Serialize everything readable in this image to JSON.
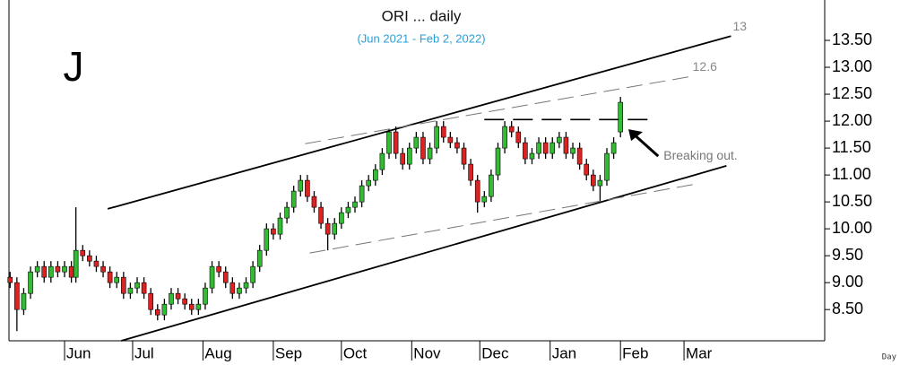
{
  "chart_data": {
    "type": "candlestick",
    "title": "ORI ... daily",
    "subtitle": "(Jun 2021 - Feb 2, 2022)",
    "panel_label": "J",
    "x_unit_label": "Day",
    "up_color": "#33bb33",
    "down_color": "#dd2222",
    "x": [
      -24,
      -21,
      -18,
      -15,
      -12,
      -9,
      -6,
      -3,
      0,
      3,
      5,
      8,
      11,
      14,
      17,
      20,
      23,
      26,
      29,
      32,
      35,
      38,
      41,
      44,
      47,
      50,
      53,
      56,
      59,
      62,
      65,
      68,
      71,
      74,
      77,
      80,
      83,
      86,
      89,
      92,
      95,
      98,
      101,
      104,
      107,
      110,
      113,
      116,
      119,
      122,
      125,
      128,
      131,
      134,
      137,
      140,
      143,
      146,
      149,
      152,
      155,
      158,
      161,
      164,
      167,
      170,
      173,
      176,
      179,
      182,
      185,
      188,
      191,
      194,
      197,
      200,
      203,
      206,
      209,
      212,
      215,
      218,
      221,
      224,
      227,
      230,
      233,
      236,
      239,
      242,
      245
    ],
    "open": [
      9.1,
      9.0,
      8.5,
      8.8,
      9.2,
      9.3,
      9.1,
      9.3,
      9.2,
      9.3,
      9.1,
      9.6,
      9.5,
      9.4,
      9.3,
      9.2,
      9.0,
      9.1,
      8.8,
      8.9,
      9.0,
      8.8,
      8.5,
      8.4,
      8.6,
      8.8,
      8.7,
      8.6,
      8.5,
      8.6,
      8.9,
      9.3,
      9.2,
      9.0,
      8.8,
      8.9,
      9.0,
      9.3,
      9.6,
      10.0,
      9.9,
      10.2,
      10.4,
      10.7,
      10.9,
      10.6,
      10.4,
      10.1,
      9.9,
      10.1,
      10.3,
      10.4,
      10.5,
      10.8,
      10.9,
      11.1,
      11.4,
      11.8,
      11.4,
      11.2,
      11.5,
      11.7,
      11.3,
      11.5,
      11.9,
      11.7,
      11.6,
      11.5,
      11.2,
      10.9,
      10.5,
      10.6,
      11.0,
      11.5,
      11.9,
      11.8,
      11.6,
      11.3,
      11.4,
      11.6,
      11.4,
      11.6,
      11.7,
      11.4,
      11.5,
      11.2,
      11.0,
      10.8,
      10.9,
      11.4,
      11.8
    ],
    "high": [
      9.2,
      9.1,
      8.9,
      9.3,
      9.4,
      9.4,
      9.4,
      9.4,
      9.4,
      9.4,
      10.4,
      9.7,
      9.6,
      9.5,
      9.4,
      9.3,
      9.2,
      9.2,
      9.0,
      9.1,
      9.1,
      8.9,
      8.6,
      8.7,
      8.9,
      8.9,
      8.8,
      8.7,
      8.7,
      9.0,
      9.4,
      9.4,
      9.3,
      9.1,
      9.0,
      9.1,
      9.4,
      9.7,
      10.1,
      10.1,
      10.3,
      10.5,
      10.8,
      11.0,
      11.0,
      10.7,
      10.5,
      10.2,
      10.2,
      10.4,
      10.5,
      10.6,
      10.9,
      11.0,
      11.2,
      11.5,
      11.85,
      11.9,
      11.5,
      11.6,
      11.8,
      11.8,
      11.6,
      12.0,
      12.0,
      11.8,
      11.7,
      11.6,
      11.3,
      11.0,
      10.7,
      11.1,
      11.6,
      12.0,
      12.0,
      11.9,
      11.7,
      11.5,
      11.7,
      11.7,
      11.7,
      11.8,
      11.8,
      11.6,
      11.6,
      11.3,
      11.1,
      11.0,
      11.5,
      11.7,
      12.45
    ],
    "low": [
      8.9,
      8.1,
      8.4,
      8.7,
      9.1,
      9.0,
      9.0,
      9.1,
      9.1,
      9.0,
      9.0,
      9.4,
      9.3,
      9.2,
      9.1,
      8.9,
      8.9,
      8.7,
      8.7,
      8.8,
      8.7,
      8.4,
      8.3,
      8.3,
      8.5,
      8.6,
      8.5,
      8.4,
      8.4,
      8.5,
      8.8,
      9.1,
      8.9,
      8.7,
      8.7,
      8.8,
      8.9,
      9.2,
      9.5,
      9.8,
      9.8,
      10.1,
      10.3,
      10.6,
      10.5,
      10.3,
      10.0,
      9.6,
      9.8,
      10.0,
      10.2,
      10.3,
      10.4,
      10.7,
      10.8,
      11.0,
      11.3,
      11.3,
      11.1,
      11.1,
      11.4,
      11.2,
      11.2,
      11.4,
      11.6,
      11.5,
      11.4,
      11.1,
      10.8,
      10.3,
      10.4,
      10.5,
      10.9,
      11.4,
      11.7,
      11.5,
      11.2,
      11.2,
      11.3,
      11.3,
      11.3,
      11.5,
      11.3,
      11.3,
      11.1,
      10.9,
      10.7,
      10.5,
      10.8,
      11.3,
      11.7
    ],
    "close": [
      9.0,
      8.5,
      8.8,
      9.2,
      9.3,
      9.1,
      9.3,
      9.2,
      9.3,
      9.1,
      9.6,
      9.5,
      9.4,
      9.3,
      9.2,
      9.0,
      9.1,
      8.8,
      8.9,
      9.0,
      8.8,
      8.5,
      8.4,
      8.6,
      8.8,
      8.7,
      8.6,
      8.5,
      8.6,
      8.9,
      9.3,
      9.2,
      9.0,
      8.8,
      8.9,
      9.0,
      9.3,
      9.6,
      10.0,
      9.9,
      10.2,
      10.4,
      10.7,
      10.9,
      10.6,
      10.4,
      10.1,
      9.9,
      10.1,
      10.3,
      10.4,
      10.5,
      10.8,
      10.9,
      11.1,
      11.4,
      11.8,
      11.4,
      11.2,
      11.5,
      11.7,
      11.3,
      11.5,
      11.9,
      11.7,
      11.6,
      11.5,
      11.2,
      10.9,
      10.5,
      10.6,
      11.0,
      11.5,
      11.9,
      11.8,
      11.6,
      11.3,
      11.4,
      11.6,
      11.4,
      11.6,
      11.7,
      11.4,
      11.5,
      11.2,
      11.0,
      10.8,
      10.9,
      11.4,
      11.6,
      12.35
    ],
    "xlim": [
      -24.5,
      335
    ],
    "xticks": [
      {
        "value": 0,
        "label": "Jun"
      },
      {
        "value": 30,
        "label": "Jul"
      },
      {
        "value": 61,
        "label": "Aug"
      },
      {
        "value": 92,
        "label": "Sep"
      },
      {
        "value": 122,
        "label": "Oct"
      },
      {
        "value": 153,
        "label": "Nov"
      },
      {
        "value": 183,
        "label": "Dec"
      },
      {
        "value": 214,
        "label": "Jan"
      },
      {
        "value": 245,
        "label": "Feb"
      },
      {
        "value": 273,
        "label": "Mar"
      }
    ],
    "ylim": [
      7.92,
      14.25
    ],
    "yticks": [
      {
        "value": 8.5,
        "label": "8.50"
      },
      {
        "value": 9,
        "label": "9.00"
      },
      {
        "value": 9.5,
        "label": "9.50"
      },
      {
        "value": 10,
        "label": "10.00"
      },
      {
        "value": 10.5,
        "label": "10.50"
      },
      {
        "value": 11,
        "label": "11.00"
      },
      {
        "value": 11.5,
        "label": "11.50"
      },
      {
        "value": 12,
        "label": "12.00"
      },
      {
        "value": 12.5,
        "label": "12.50"
      },
      {
        "value": 13,
        "label": "13.00"
      },
      {
        "value": 13.5,
        "label": "13.50"
      }
    ],
    "trendlines": [
      {
        "x": [
          19,
          293.7
        ],
        "y": [
          10.37,
          13.58
        ],
        "style": "solid",
        "label": "13"
      },
      {
        "x": [
          106,
          276
        ],
        "y": [
          11.58,
          12.83
        ],
        "style": "dashed",
        "label": "12.6"
      },
      {
        "x": [
          185,
          258
        ],
        "y": [
          12.03,
          12.03
        ],
        "style": "longdash"
      },
      {
        "x": [
          25,
          291.7
        ],
        "y": [
          7.92,
          11.17
        ],
        "style": "solid"
      },
      {
        "x": [
          108,
          278
        ],
        "y": [
          9.55,
          10.83
        ],
        "style": "dashed"
      }
    ],
    "annotation": {
      "text": "Breaking out.",
      "x": 264,
      "y": 11.35,
      "arrow_x": 248.5,
      "arrow_y": 11.85
    }
  }
}
